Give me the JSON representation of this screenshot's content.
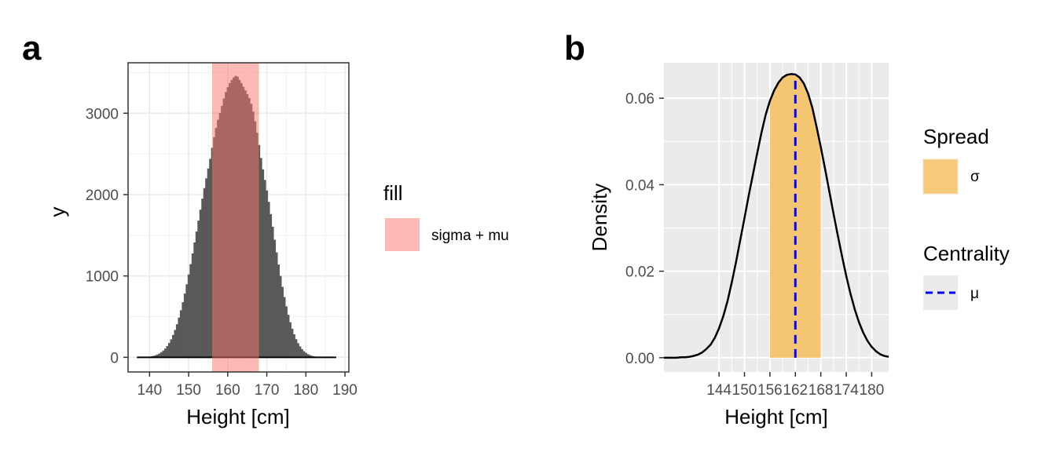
{
  "chart_data": [
    {
      "panel": "a",
      "type": "bar",
      "xlabel": "Height [cm]",
      "ylabel": "y",
      "xlim": [
        134.5,
        191
      ],
      "ylim": [
        -180,
        3620
      ],
      "xticks": [
        140,
        150,
        160,
        170,
        180,
        190
      ],
      "yticks": [
        0,
        1000,
        2000,
        3000
      ],
      "grid": true,
      "bin_width": 0.5,
      "x": [
        137.0,
        137.5,
        138.0,
        138.5,
        139.0,
        139.5,
        140.0,
        140.5,
        141.0,
        141.5,
        142.0,
        142.5,
        143.0,
        143.5,
        144.0,
        144.5,
        145.0,
        145.5,
        146.0,
        146.5,
        147.0,
        147.5,
        148.0,
        148.5,
        149.0,
        149.5,
        150.0,
        150.5,
        151.0,
        151.5,
        152.0,
        152.5,
        153.0,
        153.5,
        154.0,
        154.5,
        155.0,
        155.5,
        156.0,
        156.5,
        157.0,
        157.5,
        158.0,
        158.5,
        159.0,
        159.5,
        160.0,
        160.5,
        161.0,
        161.5,
        162.0,
        162.5,
        163.0,
        163.5,
        164.0,
        164.5,
        165.0,
        165.5,
        166.0,
        166.5,
        167.0,
        167.5,
        168.0,
        168.5,
        169.0,
        169.5,
        170.0,
        170.5,
        171.0,
        171.5,
        172.0,
        172.5,
        173.0,
        173.5,
        174.0,
        174.5,
        175.0,
        175.5,
        176.0,
        176.5,
        177.0,
        177.5,
        178.0,
        178.5,
        179.0,
        179.5,
        180.0,
        180.5,
        181.0,
        181.5,
        182.0,
        182.5,
        183.0,
        183.5,
        184.0,
        184.5,
        185.0,
        185.5,
        186.0,
        186.5,
        187.0,
        187.5
      ],
      "values": [
        1,
        1,
        2,
        3,
        4,
        6,
        9,
        13,
        18,
        25,
        35,
        47,
        63,
        82,
        108,
        138,
        176,
        221,
        274,
        336,
        407,
        488,
        578,
        676,
        783,
        898,
        1018,
        1145,
        1277,
        1412,
        1546,
        1680,
        1815,
        1950,
        2080,
        2200,
        2320,
        2440,
        2575,
        2705,
        2820,
        2920,
        3005,
        3090,
        3180,
        3260,
        3320,
        3370,
        3410,
        3440,
        3460,
        3450,
        3410,
        3370,
        3325,
        3280,
        3235,
        3185,
        3115,
        3020,
        2900,
        2760,
        2610,
        2450,
        2310,
        2180,
        2050,
        1910,
        1760,
        1605,
        1445,
        1290,
        1140,
        1000,
        866,
        741,
        626,
        522,
        431,
        351,
        282,
        223,
        174,
        134,
        101,
        75,
        55,
        39,
        28,
        19,
        13,
        9,
        6,
        4,
        2,
        2,
        1,
        1,
        1,
        1,
        0,
        0
      ],
      "shade": {
        "legend_title": "fill",
        "label": "sigma + mu",
        "xmin": 156,
        "xmax": 168,
        "color": "#f8766d"
      }
    },
    {
      "panel": "b",
      "type": "area",
      "xlabel": "Height [cm]",
      "ylabel": "Density",
      "xlim": [
        131,
        184
      ],
      "ylim": [
        -0.0033,
        0.0682
      ],
      "xticks": [
        144,
        150,
        156,
        162,
        168,
        174,
        180
      ],
      "yticks": [
        0,
        0.02,
        0.04,
        0.06
      ],
      "ytick_labels": [
        "0.00",
        "0.02",
        "0.04",
        "0.06"
      ],
      "grid": true,
      "density": {
        "x": [
          131,
          132,
          133,
          134,
          135,
          136,
          137,
          138,
          139,
          140,
          141,
          142,
          143,
          144,
          145,
          146,
          147,
          148,
          149,
          150,
          151,
          152,
          153,
          154,
          155,
          156,
          157,
          158,
          159,
          160,
          161,
          162,
          163,
          164,
          165,
          166,
          167,
          168,
          169,
          170,
          171,
          172,
          173,
          174,
          175,
          176,
          177,
          178,
          179,
          180,
          181,
          182,
          183,
          184
        ],
        "y": [
          0,
          0,
          0,
          0,
          0.0001,
          0.0001,
          0.0002,
          0.0004,
          0.0007,
          0.0012,
          0.002,
          0.003,
          0.0046,
          0.0068,
          0.0096,
          0.0131,
          0.0174,
          0.0221,
          0.0272,
          0.0323,
          0.0375,
          0.0424,
          0.0473,
          0.052,
          0.0562,
          0.0594,
          0.0618,
          0.0636,
          0.0648,
          0.0654,
          0.0656,
          0.0655,
          0.0648,
          0.0634,
          0.0611,
          0.0578,
          0.0534,
          0.0487,
          0.0437,
          0.0385,
          0.0333,
          0.0283,
          0.0235,
          0.0189,
          0.0148,
          0.0112,
          0.0082,
          0.0058,
          0.0039,
          0.0025,
          0.0015,
          0.0008,
          0.0004,
          0.0002
        ]
      },
      "spread_band": {
        "xmin": 156,
        "xmax": 168,
        "color": "#f6c46c"
      },
      "mean_line": {
        "x": 162,
        "color": "#0000ff"
      },
      "legend": [
        {
          "title": "Spread",
          "label": "σ",
          "kind": "fill",
          "color": "#f6c46c"
        },
        {
          "title": "Centrality",
          "label": "μ",
          "kind": "dashed-line",
          "color": "#0000ff"
        }
      ]
    }
  ],
  "labels": {
    "panel_a_tag": "a",
    "panel_b_tag": "b",
    "legend_a_title": "fill",
    "legend_a_label": "sigma + mu",
    "legend_b_spread_title": "Spread",
    "legend_b_spread_label": "σ",
    "legend_b_centrality_title": "Centrality",
    "legend_b_centrality_label": "μ"
  }
}
